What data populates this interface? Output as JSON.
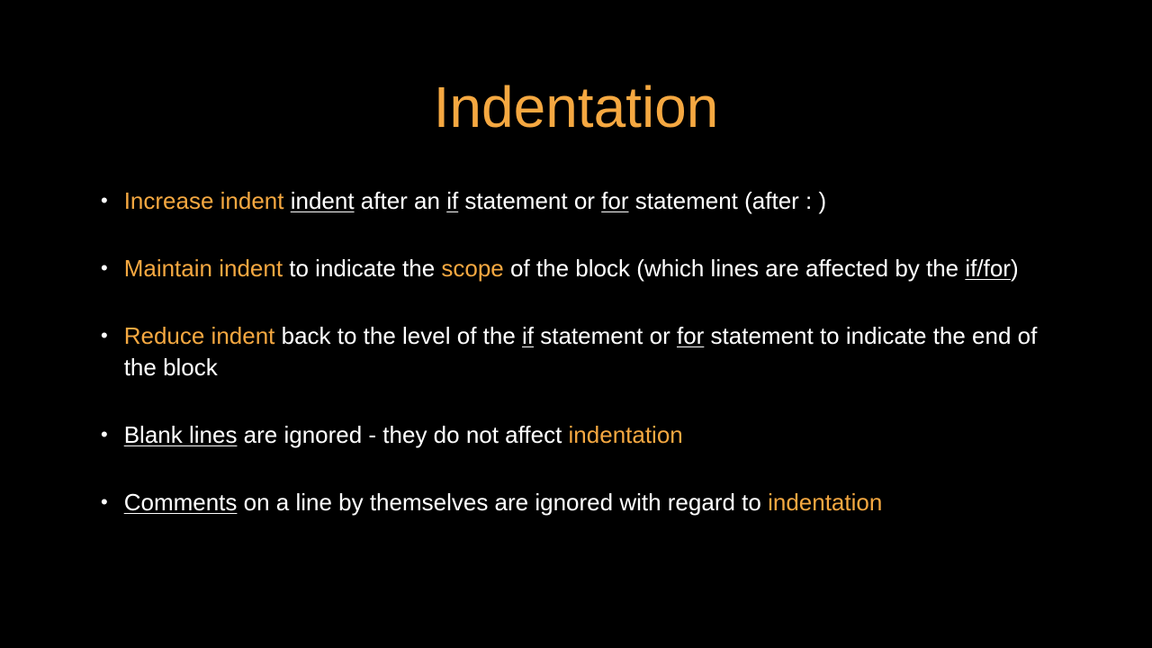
{
  "slide": {
    "title": "Indentation",
    "background_color": "#000000",
    "title_color": "#f5a841",
    "text_color": "#ffffff",
    "highlight_color": "#f5a841",
    "title_fontsize": 64,
    "body_fontsize": 26,
    "bullets": [
      {
        "segments": [
          {
            "text": "Increase indent",
            "highlight": true,
            "underline": false
          },
          {
            "text": " ",
            "highlight": false,
            "underline": false
          },
          {
            "text": "indent",
            "highlight": false,
            "underline": true
          },
          {
            "text": " after an ",
            "highlight": false,
            "underline": false
          },
          {
            "text": "if",
            "highlight": false,
            "underline": true
          },
          {
            "text": " statement or ",
            "highlight": false,
            "underline": false
          },
          {
            "text": "for",
            "highlight": false,
            "underline": true
          },
          {
            "text": " statement (after : )",
            "highlight": false,
            "underline": false
          }
        ]
      },
      {
        "segments": [
          {
            "text": "Maintain indent",
            "highlight": true,
            "underline": false
          },
          {
            "text": " to indicate the ",
            "highlight": false,
            "underline": false
          },
          {
            "text": "scope",
            "highlight": true,
            "underline": false
          },
          {
            "text": " of the block (which lines are affected by the ",
            "highlight": false,
            "underline": false
          },
          {
            "text": "if/for",
            "highlight": false,
            "underline": true
          },
          {
            "text": ")",
            "highlight": false,
            "underline": false
          }
        ]
      },
      {
        "segments": [
          {
            "text": "Reduce indent",
            "highlight": true,
            "underline": false
          },
          {
            "text": " back to the level of the ",
            "highlight": false,
            "underline": false
          },
          {
            "text": "if",
            "highlight": false,
            "underline": true
          },
          {
            "text": " statement or ",
            "highlight": false,
            "underline": false
          },
          {
            "text": "for",
            "highlight": false,
            "underline": true
          },
          {
            "text": " statement to indicate the end of the block",
            "highlight": false,
            "underline": false
          }
        ]
      },
      {
        "segments": [
          {
            "text": "Blank lines",
            "highlight": false,
            "underline": true
          },
          {
            "text": " are ignored - they do not affect ",
            "highlight": false,
            "underline": false
          },
          {
            "text": "indentation",
            "highlight": true,
            "underline": false
          }
        ]
      },
      {
        "segments": [
          {
            "text": "Comments",
            "highlight": false,
            "underline": true
          },
          {
            "text": " on a line by themselves are ignored with regard to ",
            "highlight": false,
            "underline": false
          },
          {
            "text": "indentation",
            "highlight": true,
            "underline": false
          }
        ]
      }
    ]
  }
}
